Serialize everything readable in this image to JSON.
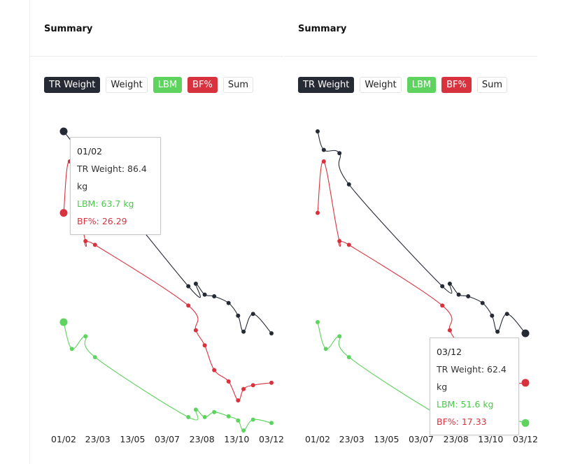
{
  "colors": {
    "tr_weight": "#262a35",
    "lbm": "#5fd35f",
    "bf": "#d9323f",
    "sum": "#222222"
  },
  "panels": [
    {
      "title": "Summary",
      "legend": {
        "tr_weight": "TR Weight",
        "weight": "Weight",
        "lbm": "LBM",
        "bf": "BF%",
        "sum": "Sum"
      },
      "tooltip": {
        "date": "01/02",
        "tr_weight": "TR Weight: 86.4 kg",
        "lbm": "LBM: 63.7 kg",
        "bf": "BF%: 26.29"
      }
    },
    {
      "title": "Summary",
      "legend": {
        "tr_weight": "TR Weight",
        "weight": "Weight",
        "lbm": "LBM",
        "bf": "BF%",
        "sum": "Sum"
      },
      "tooltip": {
        "date": "03/12",
        "tr_weight": "TR Weight: 62.4 kg",
        "lbm": "LBM: 51.6 kg",
        "bf": "BF%: 17.33"
      }
    }
  ],
  "chart_data": [
    {
      "type": "line",
      "title": "Summary",
      "x_ticks": [
        "01/02",
        "23/03",
        "13/05",
        "03/07",
        "23/08",
        "13/10",
        "03/12"
      ],
      "highlight_index": 0,
      "series": [
        {
          "name": "TR Weight",
          "points": [
            {
              "x": "01/02",
              "y": 86.4
            },
            {
              "x": "03/08",
              "y": 68.0
            },
            {
              "x": "14/08",
              "y": 68.3
            },
            {
              "x": "27/08",
              "y": 67.0
            },
            {
              "x": "10/09",
              "y": 66.8
            },
            {
              "x": "01/10",
              "y": 66.0
            },
            {
              "x": "15/10",
              "y": 64.5
            },
            {
              "x": "23/10",
              "y": 62.6
            },
            {
              "x": "06/11",
              "y": 64.7
            },
            {
              "x": "03/12",
              "y": 62.4
            }
          ]
        },
        {
          "name": "LBM",
          "points": [
            {
              "x": "01/02",
              "y": 63.7
            },
            {
              "x": "13/02",
              "y": 60.5
            },
            {
              "x": "05/03",
              "y": 62.0
            },
            {
              "x": "19/03",
              "y": 59.5
            },
            {
              "x": "03/08",
              "y": 52.3
            },
            {
              "x": "14/08",
              "y": 53.2
            },
            {
              "x": "27/08",
              "y": 52.3
            },
            {
              "x": "10/09",
              "y": 52.9
            },
            {
              "x": "01/10",
              "y": 52.4
            },
            {
              "x": "15/10",
              "y": 51.9
            },
            {
              "x": "23/10",
              "y": 50.7
            },
            {
              "x": "06/11",
              "y": 52.0
            },
            {
              "x": "03/12",
              "y": 51.6
            }
          ]
        },
        {
          "name": "BF%",
          "points": [
            {
              "x": "01/02",
              "y": 26.29
            },
            {
              "x": "10/02",
              "y": 29.0
            },
            {
              "x": "05/03",
              "y": 24.8
            },
            {
              "x": "19/03",
              "y": 24.6
            },
            {
              "x": "03/08",
              "y": 21.4
            },
            {
              "x": "14/08",
              "y": 20.1
            },
            {
              "x": "27/08",
              "y": 19.3
            },
            {
              "x": "10/09",
              "y": 18.0
            },
            {
              "x": "01/10",
              "y": 17.4
            },
            {
              "x": "15/10",
              "y": 16.4
            },
            {
              "x": "23/10",
              "y": 17.0
            },
            {
              "x": "06/11",
              "y": 17.2
            },
            {
              "x": "03/12",
              "y": 17.33
            }
          ]
        }
      ]
    },
    {
      "type": "line",
      "title": "Summary",
      "x_ticks": [
        "01/02",
        "23/03",
        "13/05",
        "03/07",
        "23/08",
        "13/10",
        "03/12"
      ],
      "highlight_index": 9,
      "series": [
        {
          "name": "TR Weight",
          "points": [
            {
              "x": "01/02",
              "y": 86.4
            },
            {
              "x": "10/02",
              "y": 84.2
            },
            {
              "x": "05/03",
              "y": 83.8
            },
            {
              "x": "19/03",
              "y": 80.1
            },
            {
              "x": "03/08",
              "y": 68.0
            },
            {
              "x": "14/08",
              "y": 68.3
            },
            {
              "x": "27/08",
              "y": 67.0
            },
            {
              "x": "10/09",
              "y": 66.8
            },
            {
              "x": "01/10",
              "y": 66.0
            },
            {
              "x": "15/10",
              "y": 64.5
            },
            {
              "x": "23/10",
              "y": 62.6
            },
            {
              "x": "06/11",
              "y": 64.7
            },
            {
              "x": "03/12",
              "y": 62.4
            }
          ]
        },
        {
          "name": "LBM",
          "points": [
            {
              "x": "01/02",
              "y": 63.7
            },
            {
              "x": "13/02",
              "y": 60.5
            },
            {
              "x": "05/03",
              "y": 62.0
            },
            {
              "x": "19/03",
              "y": 59.5
            },
            {
              "x": "03/08",
              "y": 52.3
            },
            {
              "x": "14/08",
              "y": 53.2
            },
            {
              "x": "27/08",
              "y": 52.3
            },
            {
              "x": "10/09",
              "y": 52.9
            },
            {
              "x": "01/10",
              "y": 52.4
            },
            {
              "x": "15/10",
              "y": 51.9
            },
            {
              "x": "23/10",
              "y": 50.7
            },
            {
              "x": "06/11",
              "y": 52.0
            },
            {
              "x": "03/12",
              "y": 51.6
            }
          ]
        },
        {
          "name": "BF%",
          "points": [
            {
              "x": "01/02",
              "y": 26.29
            },
            {
              "x": "10/02",
              "y": 29.0
            },
            {
              "x": "05/03",
              "y": 24.8
            },
            {
              "x": "19/03",
              "y": 24.6
            },
            {
              "x": "03/08",
              "y": 21.4
            },
            {
              "x": "14/08",
              "y": 20.1
            },
            {
              "x": "27/08",
              "y": 19.3
            },
            {
              "x": "10/09",
              "y": 18.0
            },
            {
              "x": "01/10",
              "y": 17.4
            },
            {
              "x": "15/10",
              "y": 16.4
            },
            {
              "x": "23/10",
              "y": 17.0
            },
            {
              "x": "06/11",
              "y": 17.2
            },
            {
              "x": "03/12",
              "y": 17.33
            }
          ]
        }
      ]
    }
  ]
}
